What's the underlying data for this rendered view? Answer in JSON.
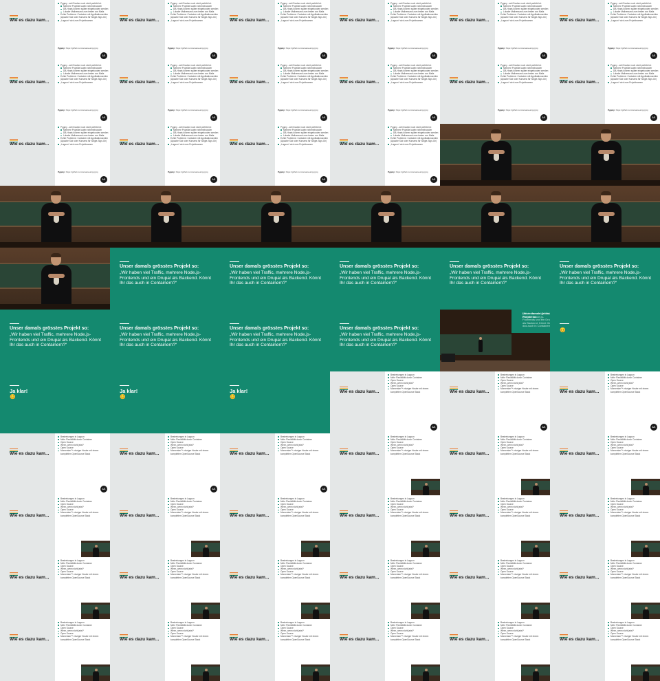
{
  "slide_title_list": "Wie es dazu kam...",
  "slide_pager": "1/1",
  "list_items_a": [
    {
      "text": "Pygmy - seit Docker noch nicht perfekt ist:",
      "level": 1
    },
    {
      "text": "Mehrere Projekte laufen nebeneinander",
      "level": 2
    },
    {
      "text": "DB-Hosts können später eingebunden werden",
      "level": 2
    },
    {
      "text": "Lokaler Mailversand zum testen von Mails",
      "level": 2
    },
    {
      "text": "Echte Probleme: Container mit Applikationsrollen (Apache Solr oder Konsens für Single-Sign-On)",
      "level": 1
    },
    {
      "text": "„Lagoon“ wird zum Projektnamen",
      "level": 1
    }
  ],
  "list_footer_label": "Pygmy:",
  "list_footer_value": "https://github.com/amazeeio/pygmy",
  "list_items_b": [
    {
      "text": "Bestrebungen in Lagoon",
      "level": 1
    },
    {
      "text": "Mehr Flexibilität durch Container",
      "level": 1
    },
    {
      "text": "Open Source",
      "level": 1
    },
    {
      "text": "Wenn, wenn nicht jetzt?",
      "level": 1
    },
    {
      "text": "Open Source",
      "level": 1
    },
    {
      "text": "Momentan™ einziger Hoster mit einem kompletten OpenSource Stack",
      "level": 1
    }
  ],
  "quote_heading": "Unser damals grösstes Projekt so:",
  "quote_body": "„Wir haben viel Traffic, mehrere Node.js-Frontends und ein Drupal als Backend. Könnt Ihr das auch in Containern?“",
  "answer_heading": "Ja klar!",
  "smiley": "😊",
  "colors": {
    "accent_green": "#14896f",
    "bar_orange": "#e8782c",
    "bar_yellow": "#f2b53a",
    "bar_green": "#14896f",
    "sidebar_grey": "#e4e7e7"
  },
  "tiles": [
    "listA",
    "listA",
    "listA",
    "listA",
    "listA",
    "listA",
    "listA",
    "listA",
    "listA",
    "listA",
    "listA",
    "listA",
    "listA",
    "listA",
    "listA",
    "listA",
    "speaker",
    "speaker",
    "speaker",
    "speaker",
    "speaker",
    "speaker",
    "speaker",
    "speaker",
    "speaker",
    "quote",
    "quote",
    "quote",
    "quote",
    "quote",
    "quote",
    "quote",
    "quote",
    "quote",
    "room",
    "green",
    "jaklar",
    "jaklar",
    "jaklar",
    "listB",
    "listB",
    "listB",
    "listB",
    "listB",
    "listB",
    "listBpip",
    "listBpip",
    "listBpip",
    "listBpip",
    "listBpip",
    "listBpip",
    "listBpip",
    "listBpip",
    "listBpip",
    "listBpip",
    "listBpip",
    "listBpip",
    "listBpip",
    "listBpip",
    "listBpip",
    "listBpip",
    "listBpip",
    "listBpip",
    "listBpip",
    "listBpip",
    "listBpip"
  ]
}
